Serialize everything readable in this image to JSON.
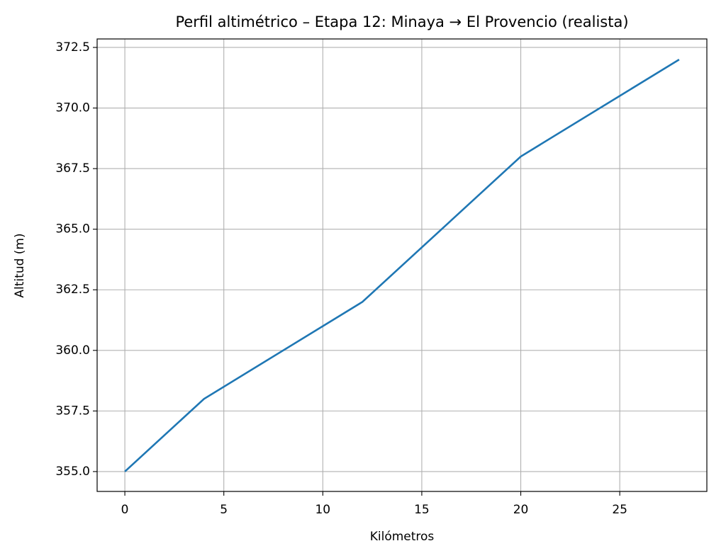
{
  "chart_data": {
    "type": "line",
    "title": "Perfil altimétrico – Etapa 12: Minaya → El Provencio (realista)",
    "xlabel": "Kilómetros",
    "ylabel": "Altitud (m)",
    "x": [
      0,
      4,
      12,
      20,
      28
    ],
    "series": [
      {
        "name": "Altitud",
        "color": "#1f77b4",
        "values": [
          355,
          358,
          362,
          368,
          372
        ]
      }
    ],
    "xlim": [
      -1.4,
      29.4
    ],
    "xticks": [
      0,
      5,
      10,
      15,
      20,
      25
    ],
    "ylim": [
      354.18,
      372.85
    ],
    "yticks": [
      {
        "value": 355,
        "label": "355.0"
      },
      {
        "value": 357.5,
        "label": "357.5"
      },
      {
        "value": 360,
        "label": "360.0"
      },
      {
        "value": 362.5,
        "label": "362.5"
      },
      {
        "value": 365,
        "label": "365.0"
      },
      {
        "value": 367.5,
        "label": "367.5"
      },
      {
        "value": 370,
        "label": "370.0"
      },
      {
        "value": 372.5,
        "label": "372.5"
      }
    ],
    "grid": true
  }
}
